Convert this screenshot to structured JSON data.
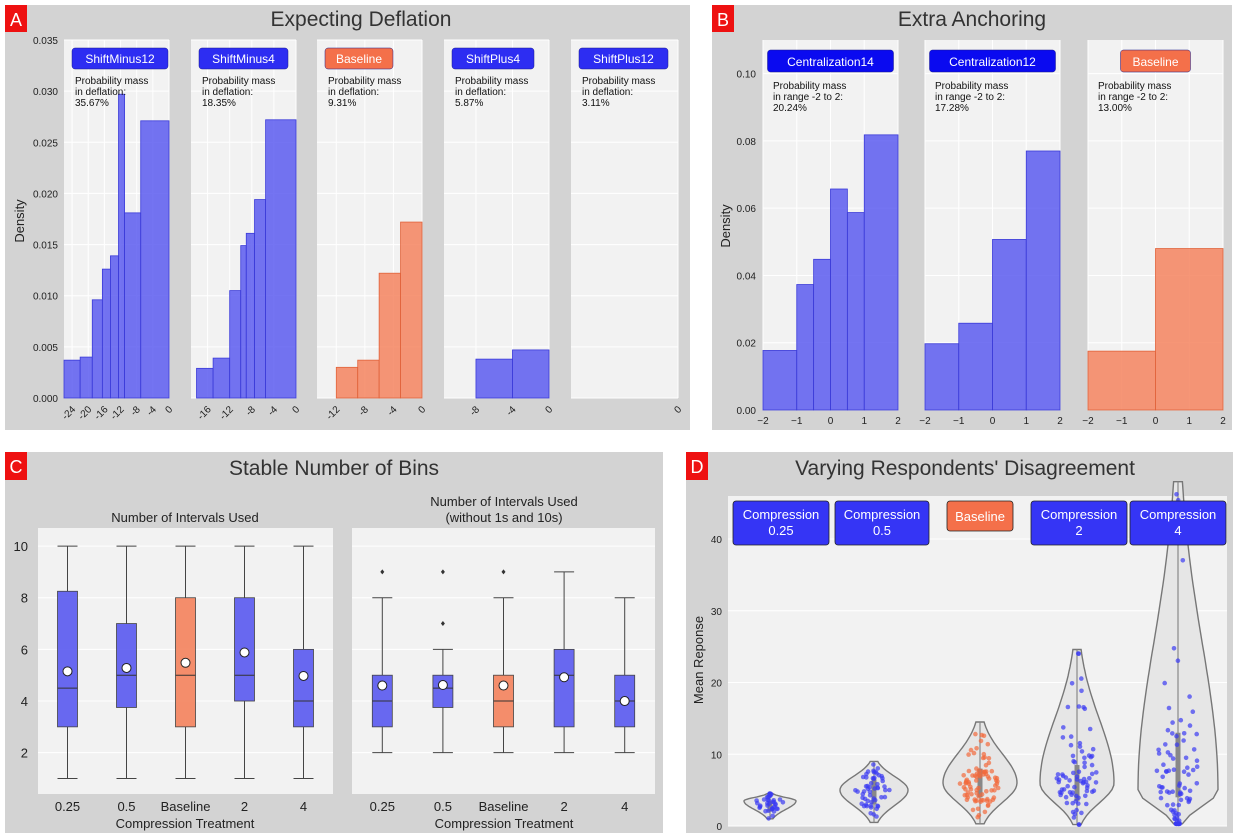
{
  "panels": {
    "A": {
      "letter": "A",
      "title": "Expecting Deflation",
      "ylabel": "Density",
      "yticks": [
        "0.000",
        "0.005",
        "0.010",
        "0.015",
        "0.020",
        "0.025",
        "0.030",
        "0.035"
      ],
      "mass_label": [
        "Probability mass",
        "in deflation:"
      ]
    },
    "B": {
      "letter": "B",
      "title": "Extra Anchoring",
      "ylabel": "Density",
      "yticks": [
        "0.00",
        "0.02",
        "0.04",
        "0.06",
        "0.08",
        "0.10"
      ],
      "mass_label": [
        "Probability mass",
        "in range -2 to 2:"
      ]
    },
    "C": {
      "letter": "C",
      "title": "Stable Number of Bins",
      "sub_left": "Number of Intervals Used",
      "sub_right": [
        "Number of Intervals Used",
        "(without 1s and 10s)"
      ],
      "xlabel": "Compression Treatment",
      "yticks": [
        "2",
        "4",
        "6",
        "8",
        "10"
      ],
      "categories": [
        "0.25",
        "0.5",
        "Baseline",
        "2",
        "4"
      ]
    },
    "D": {
      "letter": "D",
      "title": "Varying Respondents' Disagreement",
      "ylabel": "Mean Reponse",
      "yticks": [
        "0",
        "10",
        "20",
        "30",
        "40"
      ],
      "labels": [
        [
          "Compression",
          "0.25"
        ],
        [
          "Compression",
          "0.5"
        ],
        [
          "Baseline"
        ],
        [
          "Compression",
          "2"
        ],
        [
          "Compression",
          "4"
        ]
      ]
    }
  },
  "colors": {
    "blue": "#5c5cf0",
    "orange": "#f4845f",
    "panel_bg": "#d3d3d3",
    "plot_bg": "#f2f2f2",
    "letter_bg": "#ee1111",
    "label_blue": "#2d2df2",
    "label_orange": "#f4704a"
  },
  "chart_data": [
    {
      "type": "bar",
      "panel": "A",
      "title": "Expecting Deflation",
      "ylabel": "Density",
      "ylim": [
        0,
        0.035
      ],
      "subplots": [
        {
          "label": "ShiftMinus12",
          "mass": "35.67%",
          "xlim": [
            -26,
            0
          ],
          "xticks": [
            "-24",
            "-20",
            "-16",
            "-12",
            "-8",
            "-4",
            "0"
          ],
          "tick_values": [
            -24,
            -20,
            -16,
            -12,
            -8,
            -4,
            0
          ],
          "bins": [
            [
              -26,
              -22,
              0.0037
            ],
            [
              -22,
              -19,
              0.004
            ],
            [
              -19,
              -16.5,
              0.0096
            ],
            [
              -16.5,
              -14.5,
              0.0126
            ],
            [
              -14.5,
              -12.5,
              0.0139
            ],
            [
              -12.5,
              -11,
              0.0297
            ],
            [
              -11,
              -7,
              0.0181
            ],
            [
              -7,
              0,
              0.0271
            ]
          ]
        },
        {
          "label": "ShiftMinus4",
          "mass": "18.35%",
          "xlim": [
            -19,
            0
          ],
          "xticks": [
            "-16",
            "-12",
            "-8",
            "-4",
            "0"
          ],
          "tick_values": [
            -16,
            -12,
            -8,
            -4,
            0
          ],
          "bins": [
            [
              -18,
              -15,
              0.0029
            ],
            [
              -15,
              -12,
              0.0039
            ],
            [
              -12,
              -10,
              0.0105
            ],
            [
              -10,
              -9,
              0.0149
            ],
            [
              -9,
              -7.5,
              0.0161
            ],
            [
              -7.5,
              -5.5,
              0.0194
            ],
            [
              -5.5,
              0,
              0.0272
            ]
          ]
        },
        {
          "label": "Baseline",
          "mass": "9.31%",
          "xlim": [
            -14.7,
            0
          ],
          "xticks": [
            "-12",
            "-8",
            "-4",
            "0"
          ],
          "tick_values": [
            -12,
            -8,
            -4,
            0
          ],
          "bins": [
            [
              -12,
              -9,
              0.003
            ],
            [
              -9,
              -6,
              0.0037
            ],
            [
              -6,
              -3,
              0.0122
            ],
            [
              -3,
              0,
              0.0172
            ]
          ]
        },
        {
          "label": "ShiftPlus4",
          "mass": "5.87%",
          "xlim": [
            -11.5,
            0
          ],
          "xticks": [
            "-8",
            "-4",
            "0"
          ],
          "tick_values": [
            -8,
            -4,
            0
          ],
          "bins": [
            [
              -8,
              -4,
              0.0038
            ],
            [
              -4,
              0,
              0.0047
            ]
          ]
        },
        {
          "label": "ShiftPlus12",
          "mass": "3.11%",
          "xlim": [
            -27.8,
            0
          ],
          "xticks": [
            "0"
          ],
          "tick_values": [
            0
          ],
          "bins": []
        }
      ]
    },
    {
      "type": "bar",
      "panel": "B",
      "title": "Extra Anchoring",
      "ylabel": "Density",
      "ylim": [
        0,
        0.11
      ],
      "xlim": [
        -2,
        2
      ],
      "xticks": [
        "-2",
        "-1",
        "0",
        "1",
        "2"
      ],
      "subplots": [
        {
          "label": "Centralization14",
          "mass": "20.24%",
          "bins": [
            [
              -2,
              -1,
              0.0177
            ],
            [
              -1,
              -0.5,
              0.0373
            ],
            [
              -0.5,
              0,
              0.0448
            ],
            [
              0,
              0.5,
              0.0657
            ],
            [
              0.5,
              1,
              0.0587
            ],
            [
              1,
              2,
              0.0818
            ]
          ]
        },
        {
          "label": "Centralization12",
          "mass": "17.28%",
          "bins": [
            [
              -2,
              -1,
              0.0197
            ],
            [
              -1,
              0,
              0.0258
            ],
            [
              0,
              1,
              0.0507
            ],
            [
              1,
              2,
              0.077
            ]
          ]
        },
        {
          "label": "Baseline",
          "mass": "13.00%",
          "bins": [
            [
              -2,
              0,
              0.0175
            ],
            [
              0,
              2,
              0.048
            ]
          ]
        }
      ]
    },
    {
      "type": "box",
      "panel": "C",
      "categories": [
        "0.25",
        "0.5",
        "Baseline",
        "2",
        "4"
      ],
      "xlabel": "Compression Treatment",
      "ylim": [
        0.4,
        10.7
      ],
      "subplots": [
        {
          "title": "Number of Intervals Used",
          "boxes": [
            {
              "min": 1,
              "q1": 3,
              "median": 4.5,
              "q3": 8.25,
              "max": 10,
              "mean": 5.15,
              "outliers": []
            },
            {
              "min": 1,
              "q1": 3.75,
              "median": 5,
              "q3": 7,
              "max": 10,
              "mean": 5.28,
              "outliers": []
            },
            {
              "min": 1,
              "q1": 3,
              "median": 5,
              "q3": 8,
              "max": 10,
              "mean": 5.48,
              "outliers": []
            },
            {
              "min": 1,
              "q1": 4,
              "median": 5,
              "q3": 8,
              "max": 10,
              "mean": 5.88,
              "outliers": []
            },
            {
              "min": 1,
              "q1": 3,
              "median": 4,
              "q3": 6,
              "max": 10,
              "mean": 4.97,
              "outliers": []
            }
          ]
        },
        {
          "title": "Number of Intervals Used (without 1s and 10s)",
          "boxes": [
            {
              "min": 2,
              "q1": 3,
              "median": 4,
              "q3": 5,
              "max": 8,
              "mean": 4.6,
              "outliers": [
                9
              ]
            },
            {
              "min": 2,
              "q1": 3.75,
              "median": 4.5,
              "q3": 5,
              "max": 6,
              "mean": 4.62,
              "outliers": [
                7,
                9
              ]
            },
            {
              "min": 2,
              "q1": 3,
              "median": 4,
              "q3": 5,
              "max": 8,
              "mean": 4.6,
              "outliers": [
                9
              ]
            },
            {
              "min": 2,
              "q1": 3,
              "median": 5,
              "q3": 6,
              "max": 9,
              "mean": 4.92,
              "outliers": []
            },
            {
              "min": 2,
              "q1": 3,
              "median": 4,
              "q3": 5,
              "max": 8,
              "mean": 4,
              "outliers": []
            }
          ]
        }
      ]
    },
    {
      "type": "violin",
      "panel": "D",
      "ylabel": "Mean Reponse",
      "ylim": [
        0,
        46
      ],
      "groups": [
        {
          "label": "Compression 0.25",
          "min": 1,
          "max": 4.5,
          "median": 2.5,
          "q1": 2,
          "q3": 3.5,
          "mode": 3.5,
          "n": 40
        },
        {
          "label": "Compression 0.5",
          "min": 0.5,
          "max": 9,
          "median": 5,
          "q1": 3,
          "q3": 6.5,
          "mode": 5,
          "n": 55
        },
        {
          "label": "Baseline",
          "min": 0.3,
          "max": 14.5,
          "median": 6,
          "q1": 4,
          "q3": 8,
          "mode": 6,
          "n": 85
        },
        {
          "label": "Compression 2",
          "min": 0.2,
          "max": 24.6,
          "median": 6,
          "q1": 3.5,
          "q3": 8.5,
          "mode": 6,
          "n": 80
        },
        {
          "label": "Compression 4",
          "min": 0.3,
          "max": 48,
          "median": 7,
          "q1": 4,
          "q3": 13,
          "mode": 5,
          "n": 95
        }
      ]
    }
  ]
}
